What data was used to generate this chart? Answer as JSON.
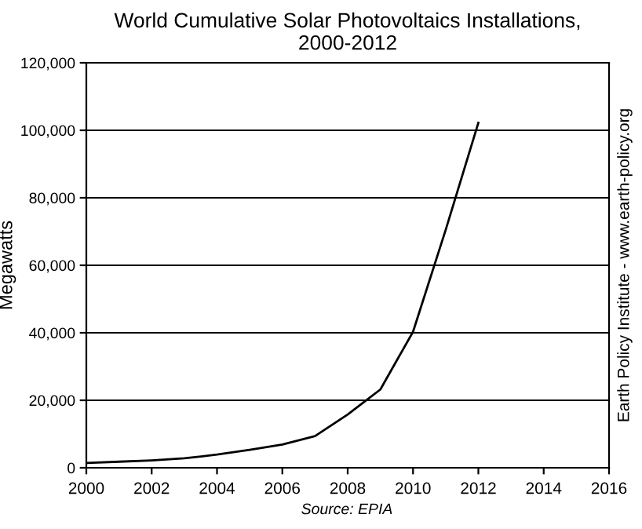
{
  "chart_data": {
    "type": "line",
    "title": "World Cumulative Solar Photovoltaics Installations,\n2000-2012",
    "ylabel": "Megawatts",
    "x": [
      2000,
      2001,
      2002,
      2003,
      2004,
      2005,
      2006,
      2007,
      2008,
      2009,
      2010,
      2011,
      2012
    ],
    "series": [
      {
        "color": "#000000",
        "values": [
          1400,
          1800,
          2200,
          2800,
          3900,
          5300,
          6900,
          9400,
          15800,
          23200,
          40300,
          70500,
          102200
        ]
      }
    ],
    "xlim": [
      2000,
      2016
    ],
    "xticks": [
      2000,
      2002,
      2004,
      2006,
      2008,
      2010,
      2012,
      2014,
      2016
    ],
    "ylim": [
      0,
      120000
    ],
    "yticks": [
      {
        "value": 0,
        "label": "0"
      },
      {
        "value": 20000,
        "label": "20,000"
      },
      {
        "value": 40000,
        "label": "40,000"
      },
      {
        "value": 60000,
        "label": "60,000"
      },
      {
        "value": 80000,
        "label": "80,000"
      },
      {
        "value": 100000,
        "label": "100,000"
      },
      {
        "value": 120000,
        "label": "120,000"
      }
    ],
    "grid": "y",
    "marker": "none",
    "line_style": "solid",
    "annotations": [
      "Source: EPIA",
      "Earth Policy Institute - www.earth-policy.org"
    ]
  }
}
